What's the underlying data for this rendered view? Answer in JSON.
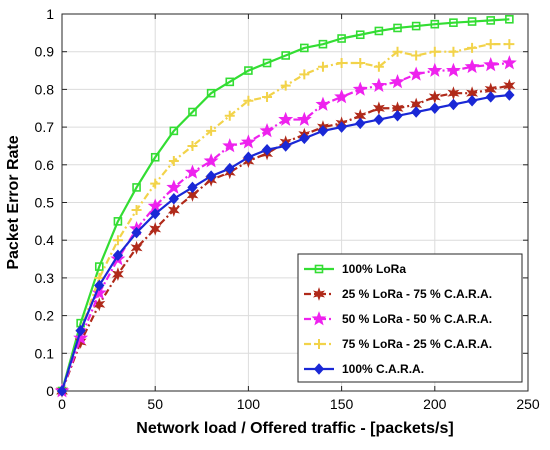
{
  "chart_data": {
    "type": "line",
    "title": "",
    "xlabel": "Network load / Offered traffic - [packets/s]",
    "ylabel": "Packet Error Rate",
    "xlim": [
      0,
      250
    ],
    "ylim": [
      0,
      1
    ],
    "xticks": [
      0,
      50,
      100,
      150,
      200,
      250
    ],
    "yticks": [
      0,
      0.1,
      0.2,
      0.3,
      0.4,
      0.5,
      0.6,
      0.7,
      0.8,
      0.9,
      1
    ],
    "grid": true,
    "legend_position": "lower-right",
    "x": [
      0,
      10,
      20,
      30,
      40,
      50,
      60,
      70,
      80,
      90,
      100,
      110,
      120,
      130,
      140,
      150,
      160,
      170,
      180,
      190,
      200,
      210,
      220,
      230,
      240
    ],
    "series": [
      {
        "name": "100% LoRa",
        "color": "#33dd33",
        "line_style": "solid",
        "marker": "square",
        "values": [
          0,
          0.18,
          0.33,
          0.45,
          0.54,
          0.62,
          0.69,
          0.74,
          0.79,
          0.82,
          0.85,
          0.87,
          0.89,
          0.91,
          0.92,
          0.935,
          0.945,
          0.955,
          0.963,
          0.968,
          0.973,
          0.977,
          0.98,
          0.983,
          0.986
        ]
      },
      {
        "name": "25 % LoRa - 75 % C.A.R.A.",
        "color": "#b02a1a",
        "line_style": "dashdot",
        "marker": "star6",
        "values": [
          0,
          0.13,
          0.23,
          0.31,
          0.38,
          0.43,
          0.48,
          0.52,
          0.56,
          0.58,
          0.61,
          0.63,
          0.66,
          0.68,
          0.7,
          0.71,
          0.73,
          0.75,
          0.75,
          0.76,
          0.78,
          0.79,
          0.79,
          0.8,
          0.81
        ]
      },
      {
        "name": "50 % LoRa - 50 % C.A.R.A.",
        "color": "#ee22ee",
        "line_style": "dashdot",
        "marker": "star5",
        "values": [
          0,
          0.14,
          0.26,
          0.35,
          0.43,
          0.49,
          0.54,
          0.58,
          0.61,
          0.65,
          0.66,
          0.69,
          0.72,
          0.72,
          0.76,
          0.78,
          0.8,
          0.81,
          0.82,
          0.84,
          0.85,
          0.85,
          0.86,
          0.865,
          0.87
        ]
      },
      {
        "name": "75 % LoRa - 25 % C.A.R.A.",
        "color": "#f2d34a",
        "line_style": "dashdot",
        "marker": "plus",
        "values": [
          0,
          0.16,
          0.3,
          0.4,
          0.48,
          0.55,
          0.61,
          0.65,
          0.69,
          0.73,
          0.77,
          0.78,
          0.81,
          0.84,
          0.86,
          0.87,
          0.87,
          0.86,
          0.9,
          0.89,
          0.9,
          0.9,
          0.91,
          0.92,
          0.92
        ]
      },
      {
        "name": "100% C.A.R.A.",
        "color": "#1a28d6",
        "line_style": "solid",
        "marker": "diamond",
        "values": [
          0,
          0.16,
          0.28,
          0.36,
          0.42,
          0.47,
          0.51,
          0.54,
          0.57,
          0.59,
          0.62,
          0.64,
          0.65,
          0.67,
          0.69,
          0.7,
          0.71,
          0.72,
          0.73,
          0.74,
          0.75,
          0.76,
          0.77,
          0.78,
          0.785
        ]
      }
    ]
  }
}
